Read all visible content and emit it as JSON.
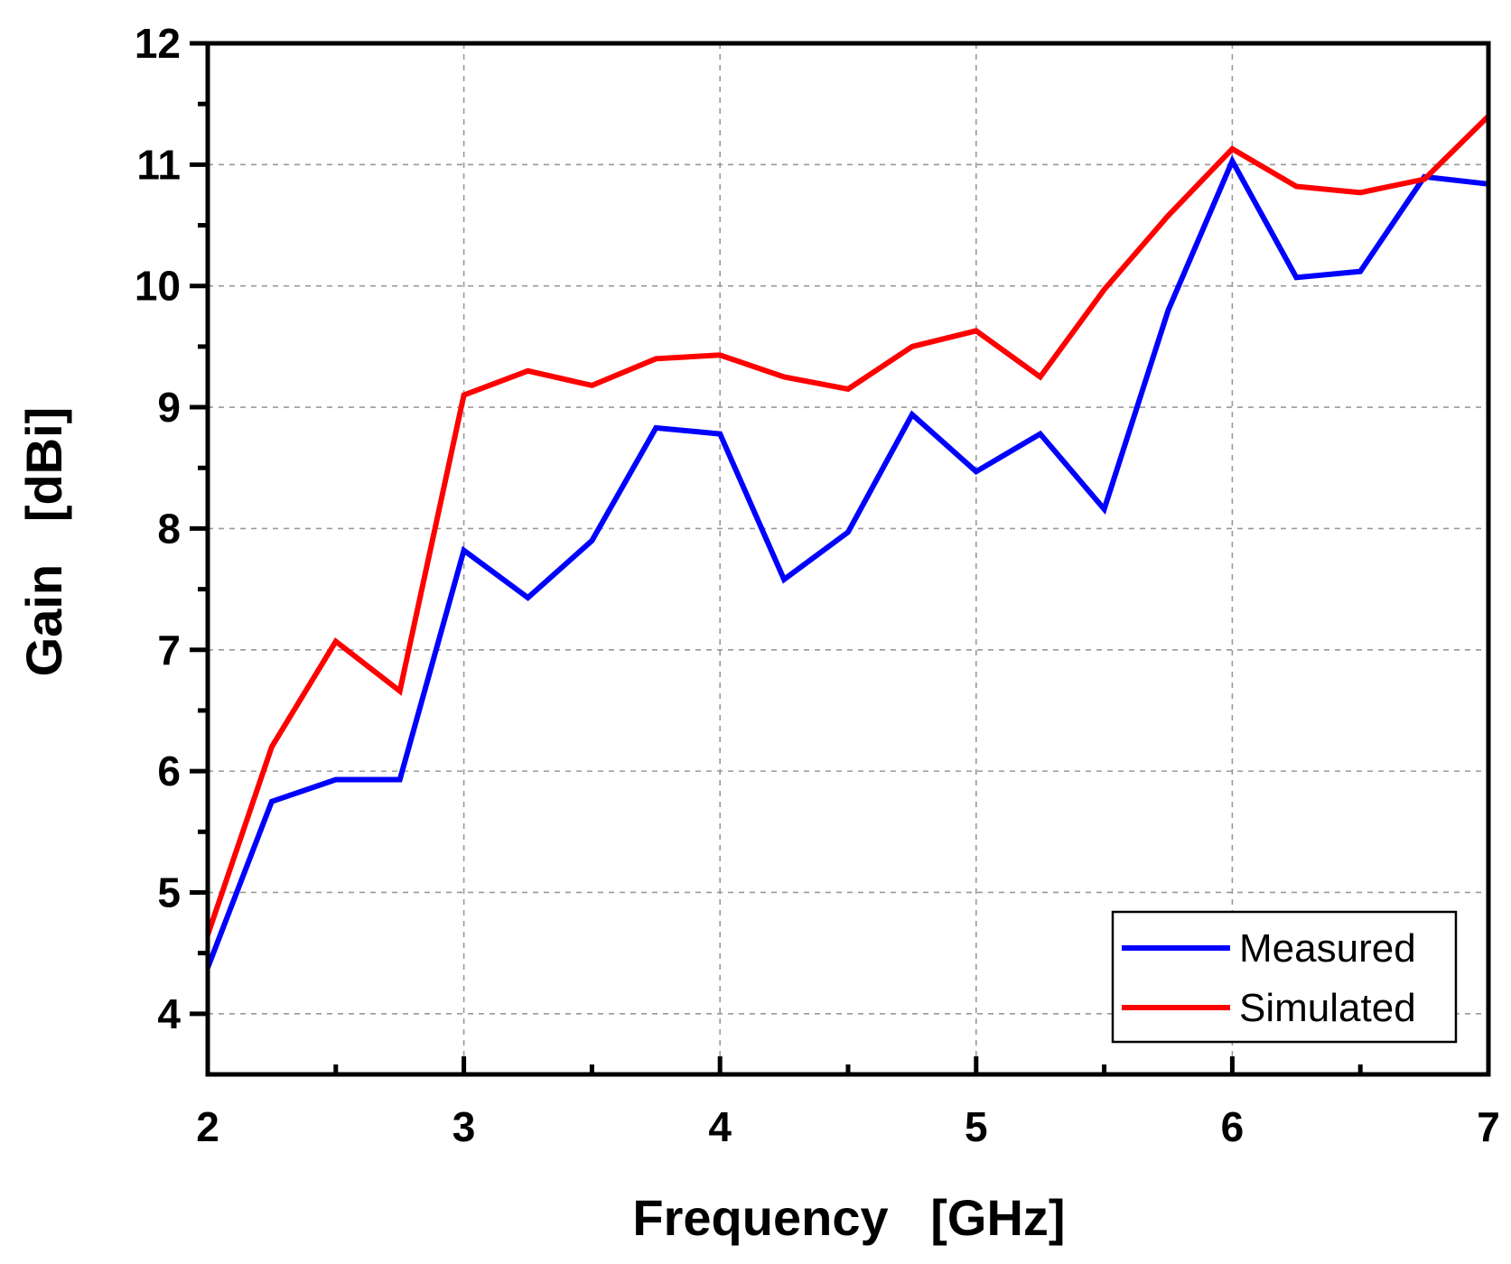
{
  "chart_data": {
    "type": "line",
    "title": "",
    "xlabel": "Frequency   [GHz]",
    "ylabel": "Gain   [dBi]",
    "xlim": [
      2,
      7
    ],
    "ylim": [
      3.5,
      12
    ],
    "xticks": [
      2,
      3,
      4,
      5,
      6,
      7
    ],
    "yticks": [
      4,
      5,
      6,
      7,
      8,
      9,
      10,
      11,
      12
    ],
    "grid": true,
    "legend_position": "bottom-right",
    "x": [
      2.0,
      2.25,
      2.5,
      2.75,
      3.0,
      3.25,
      3.5,
      3.75,
      4.0,
      4.25,
      4.5,
      4.75,
      5.0,
      5.25,
      5.5,
      5.75,
      6.0,
      6.25,
      6.5,
      6.75,
      7.0
    ],
    "series": [
      {
        "name": "Measured",
        "color": "#0000ff",
        "values": [
          4.38,
          5.75,
          5.93,
          5.93,
          7.82,
          7.43,
          7.9,
          8.83,
          8.78,
          7.58,
          7.97,
          8.94,
          8.47,
          8.78,
          8.16,
          9.8,
          11.03,
          10.07,
          10.12,
          10.9,
          10.84
        ]
      },
      {
        "name": "Simulated",
        "color": "#ff0000",
        "values": [
          4.65,
          6.2,
          7.07,
          6.66,
          9.1,
          9.3,
          9.18,
          9.4,
          9.43,
          9.25,
          9.15,
          9.5,
          9.63,
          9.25,
          9.97,
          10.58,
          11.13,
          10.82,
          10.77,
          10.88,
          11.4
        ]
      }
    ]
  }
}
